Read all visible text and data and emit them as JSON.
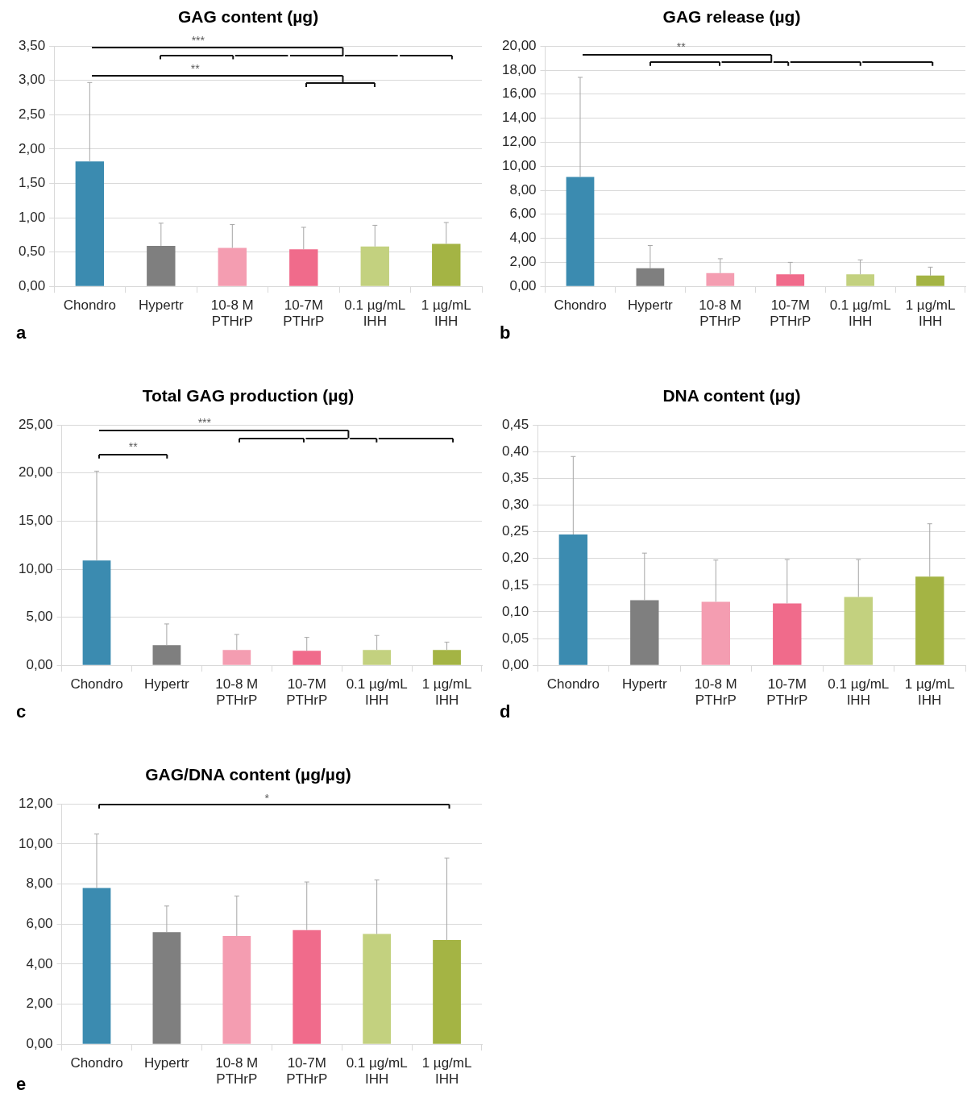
{
  "chart_data": [
    {
      "type": "bar",
      "title": "GAG content (µg)",
      "categories": [
        "Chondro",
        "Hypertr",
        "10-8 M\nPTHrP",
        "10-7M\nPTHrP",
        "0.1 µg/mL\nIHH",
        "1 µg/mL\nIHH"
      ],
      "values": [
        1.82,
        0.59,
        0.56,
        0.54,
        0.58,
        0.62
      ],
      "colors": [
        "#3b8bb0",
        "#7f7f7f",
        "#f49db1",
        "#f06b8b",
        "#c3d17f",
        "#a4b444"
      ],
      "errors": [
        [
          1.82,
          2.97
        ],
        [
          0.59,
          0.92
        ],
        [
          0.56,
          0.9
        ],
        [
          0.54,
          0.86
        ],
        [
          0.58,
          0.89
        ],
        [
          0.62,
          0.93
        ]
      ],
      "ylim": [
        0,
        3.5
      ],
      "yticks": [
        {
          "value": 0,
          "label": "0,00"
        },
        {
          "value": 0.5,
          "label": "0,50"
        },
        {
          "value": 1,
          "label": "1,00"
        },
        {
          "value": 1.5,
          "label": "1,50"
        },
        {
          "value": 2,
          "label": "2,00"
        },
        {
          "value": 2.5,
          "label": "2,50"
        },
        {
          "value": 3,
          "label": "3,00"
        },
        {
          "value": 3.5,
          "label": "3,50"
        }
      ],
      "grid": "y",
      "annotations": [
        "***",
        "**",
        "a"
      ]
    },
    {
      "type": "bar",
      "title": "GAG release (µg)",
      "categories": [
        "Chondro",
        "Hypertr",
        "10-8 M\nPTHrP",
        "10-7M\nPTHrP",
        "0.1 µg/mL\nIHH",
        "1 µg/mL\nIHH"
      ],
      "values": [
        9.1,
        1.5,
        1.1,
        1.0,
        1.0,
        0.9
      ],
      "colors": [
        "#3b8bb0",
        "#7f7f7f",
        "#f49db1",
        "#f06b8b",
        "#c3d17f",
        "#a4b444"
      ],
      "errors": [
        [
          9.1,
          17.4
        ],
        [
          1.5,
          3.4
        ],
        [
          1.1,
          2.3
        ],
        [
          1.0,
          2.0
        ],
        [
          1.0,
          2.2
        ],
        [
          0.9,
          1.6
        ]
      ],
      "ylim": [
        0,
        20
      ],
      "yticks": [
        {
          "value": 0,
          "label": "0,00"
        },
        {
          "value": 2,
          "label": "2,00"
        },
        {
          "value": 4,
          "label": "4,00"
        },
        {
          "value": 6,
          "label": "6,00"
        },
        {
          "value": 8,
          "label": "8,00"
        },
        {
          "value": 10,
          "label": "10,00"
        },
        {
          "value": 12,
          "label": "12,00"
        },
        {
          "value": 14,
          "label": "14,00"
        },
        {
          "value": 16,
          "label": "16,00"
        },
        {
          "value": 18,
          "label": "18,00"
        },
        {
          "value": 20,
          "label": "20,00"
        }
      ],
      "grid": "y",
      "annotations": [
        "**",
        "b"
      ]
    },
    {
      "type": "bar",
      "title": "Total GAG production (µg)",
      "categories": [
        "Chondro",
        "Hypertr",
        "10-8 M\nPTHrP",
        "10-7M\nPTHrP",
        "0.1 µg/mL\nIHH",
        "1 µg/mL\nIHH"
      ],
      "values": [
        10.9,
        2.1,
        1.6,
        1.5,
        1.6,
        1.6
      ],
      "colors": [
        "#3b8bb0",
        "#7f7f7f",
        "#f49db1",
        "#f06b8b",
        "#c3d17f",
        "#a4b444"
      ],
      "errors": [
        [
          10.9,
          20.2
        ],
        [
          2.1,
          4.3
        ],
        [
          1.6,
          3.2
        ],
        [
          1.5,
          2.9
        ],
        [
          1.6,
          3.1
        ],
        [
          1.6,
          2.4
        ]
      ],
      "ylim": [
        0,
        25
      ],
      "yticks": [
        {
          "value": 0,
          "label": "0,00"
        },
        {
          "value": 5,
          "label": "5,00"
        },
        {
          "value": 10,
          "label": "10,00"
        },
        {
          "value": 15,
          "label": "15,00"
        },
        {
          "value": 20,
          "label": "20,00"
        },
        {
          "value": 25,
          "label": "25,00"
        }
      ],
      "grid": "y",
      "annotations": [
        "***",
        "**",
        "c"
      ]
    },
    {
      "type": "bar",
      "title": "DNA content (µg)",
      "categories": [
        "Chondro",
        "Hypertr",
        "10-8 M\nPTHrP",
        "10-7M\nPTHrP",
        "0.1 µg/mL\nIHH",
        "1 µg/mL\nIHH"
      ],
      "values": [
        0.245,
        0.122,
        0.119,
        0.116,
        0.128,
        0.166
      ],
      "colors": [
        "#3b8bb0",
        "#7f7f7f",
        "#f49db1",
        "#f06b8b",
        "#c3d17f",
        "#a4b444"
      ],
      "errors": [
        [
          0.245,
          0.391
        ],
        [
          0.122,
          0.21
        ],
        [
          0.119,
          0.197
        ],
        [
          0.116,
          0.198
        ],
        [
          0.128,
          0.198
        ],
        [
          0.166,
          0.265
        ]
      ],
      "ylim": [
        0,
        0.45
      ],
      "yticks": [
        {
          "value": 0,
          "label": "0,00"
        },
        {
          "value": 0.05,
          "label": "0,05"
        },
        {
          "value": 0.1,
          "label": "0,10"
        },
        {
          "value": 0.15,
          "label": "0,15"
        },
        {
          "value": 0.2,
          "label": "0,20"
        },
        {
          "value": 0.25,
          "label": "0,25"
        },
        {
          "value": 0.3,
          "label": "0,30"
        },
        {
          "value": 0.35,
          "label": "0,35"
        },
        {
          "value": 0.4,
          "label": "0,40"
        },
        {
          "value": 0.45,
          "label": "0,45"
        }
      ],
      "grid": "y",
      "annotations": [
        "d"
      ]
    },
    {
      "type": "bar",
      "title": "GAG/DNA content (µg/µg)",
      "categories": [
        "Chondro",
        "Hypertr",
        "10-8 M\nPTHrP",
        "10-7M\nPTHrP",
        "0.1 µg/mL\nIHH",
        "1 µg/mL\nIHH"
      ],
      "values": [
        7.8,
        5.6,
        5.4,
        5.7,
        5.5,
        5.2
      ],
      "colors": [
        "#3b8bb0",
        "#7f7f7f",
        "#f49db1",
        "#f06b8b",
        "#c3d17f",
        "#a4b444"
      ],
      "errors": [
        [
          7.8,
          10.5
        ],
        [
          5.6,
          6.9
        ],
        [
          5.4,
          7.4
        ],
        [
          5.7,
          8.1
        ],
        [
          5.5,
          8.2
        ],
        [
          5.2,
          9.3
        ]
      ],
      "ylim": [
        0,
        12
      ],
      "yticks": [
        {
          "value": 0,
          "label": "0,00"
        },
        {
          "value": 2,
          "label": "2,00"
        },
        {
          "value": 4,
          "label": "4,00"
        },
        {
          "value": 6,
          "label": "6,00"
        },
        {
          "value": 8,
          "label": "8,00"
        },
        {
          "value": 10,
          "label": "10,00"
        },
        {
          "value": 12,
          "label": "12,00"
        }
      ],
      "grid": "y",
      "annotations": [
        "*",
        "e"
      ]
    }
  ]
}
